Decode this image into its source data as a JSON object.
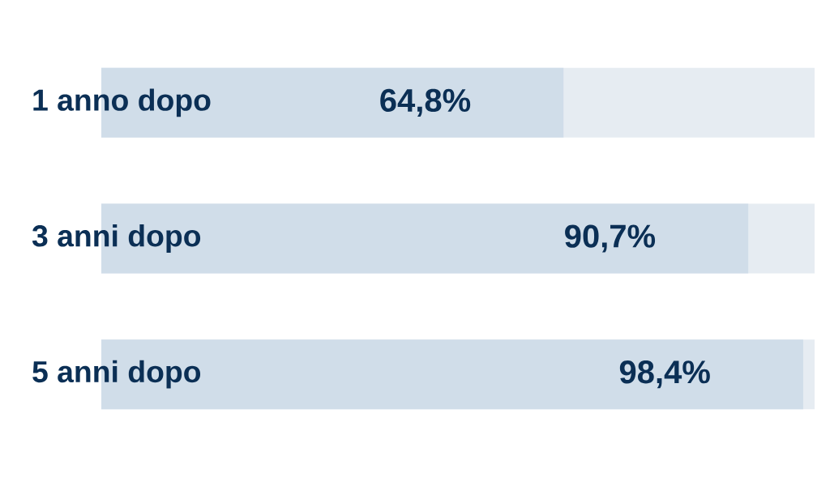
{
  "chart_data": {
    "type": "bar",
    "orientation": "horizontal",
    "categories": [
      "1 anno dopo",
      "3 anni dopo",
      "5 anni dopo"
    ],
    "xlim": [
      0,
      100
    ],
    "tick_labels": "y",
    "series": [
      {
        "color": "#d0dde9",
        "values": [
          64.8,
          90.7,
          98.4
        ],
        "value_labels": [
          "64,8%",
          "90,7%",
          "98,4%"
        ]
      }
    ]
  }
}
